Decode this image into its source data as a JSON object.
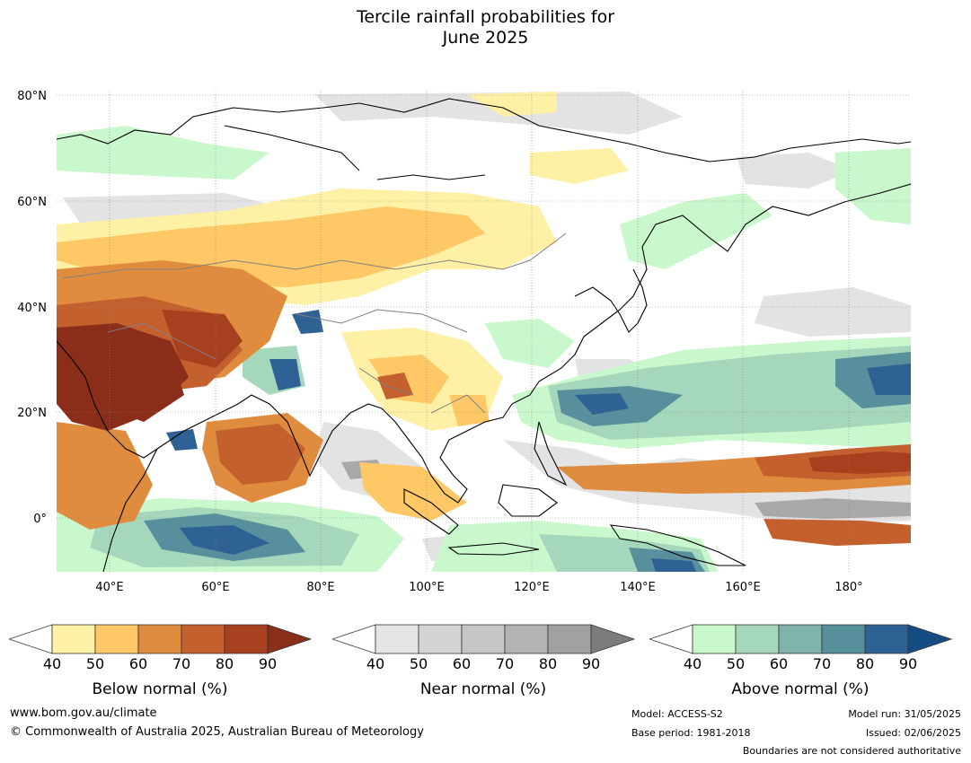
{
  "title_line1": "Tercile rainfall probabilities for",
  "title_line2": "June 2025",
  "lat_ticks": [
    "80°N",
    "60°N",
    "40°N",
    "20°N",
    "0°"
  ],
  "lon_ticks": [
    "40°E",
    "60°E",
    "80°E",
    "100°E",
    "120°E",
    "140°E",
    "160°E",
    "180°"
  ],
  "legends": [
    {
      "label": "Below normal (%)",
      "colors": [
        "#fef0a5",
        "#fdc865",
        "#e08c3e",
        "#c4602d",
        "#a6401f",
        "#8a2e1a"
      ],
      "ticks": [
        "40",
        "50",
        "60",
        "70",
        "80",
        "90"
      ]
    },
    {
      "label": "Near normal (%)",
      "colors": [
        "#e5e5e5",
        "#d4d4d4",
        "#c6c6c6",
        "#b3b3b3",
        "#a1a1a1",
        "#7c7c7c"
      ],
      "ticks": [
        "40",
        "50",
        "60",
        "70",
        "80",
        "90"
      ]
    },
    {
      "label": "Above normal (%)",
      "colors": [
        "#c8f8cb",
        "#a4d7bc",
        "#7fb3ac",
        "#578f9d",
        "#2e6295",
        "#164c84"
      ],
      "ticks": [
        "40",
        "50",
        "60",
        "70",
        "80",
        "90"
      ]
    }
  ],
  "footer": {
    "website": "www.bom.gov.au/climate",
    "copyright": "© Commonwealth of Australia 2025, Australian Bureau of Meteorology",
    "model": "Model: ACCESS-S2",
    "base_period": "Base period: 1981-2018",
    "model_run": "Model run: 31/05/2025",
    "issued": "Issued: 02/06/2025",
    "boundaries_note": "Boundaries are not considered authoritative"
  }
}
